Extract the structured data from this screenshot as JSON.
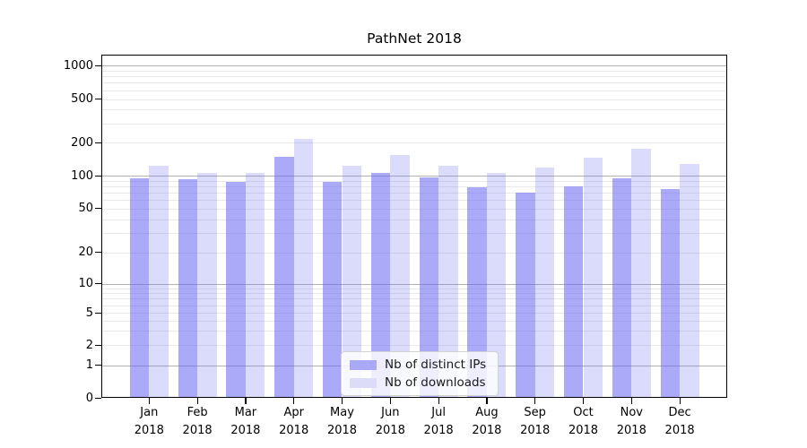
{
  "chart_data": {
    "type": "bar",
    "title": "PathNet 2018",
    "x": {
      "categories": [
        "Jan",
        "Feb",
        "Mar",
        "Apr",
        "May",
        "Jun",
        "Jul",
        "Aug",
        "Sep",
        "Oct",
        "Nov",
        "Dec"
      ],
      "year": "2018"
    },
    "y": {
      "scale": "symlog",
      "tick_values": [
        0,
        1,
        2,
        5,
        10,
        20,
        50,
        100,
        200,
        500,
        1000
      ],
      "tick_labels": [
        "0",
        "1",
        "2",
        "5",
        "10",
        "20",
        "50",
        "100",
        "200",
        "500",
        "1000"
      ],
      "ylim": [
        0,
        1250
      ],
      "grid": "on",
      "major_grid_values": [
        1,
        10,
        100,
        1000
      ],
      "minor_grid_subs": [
        2,
        3,
        4,
        5,
        6,
        7,
        8,
        9
      ]
    },
    "series": [
      {
        "name": "Nb of distinct IPs",
        "values": [
          94,
          92,
          88,
          150,
          88,
          106,
          97,
          79,
          70,
          80,
          95,
          76
        ],
        "fill": "rgba(100,100,243,0.55)",
        "legend_swatch": "#a9a9f6"
      },
      {
        "name": "Nb of downloads",
        "values": [
          124,
          106,
          106,
          215,
          123,
          155,
          124,
          106,
          118,
          145,
          178,
          127
        ],
        "fill": "rgba(100,100,243,0.235)",
        "legend_swatch": "#dcdcf9"
      }
    ],
    "legend": {
      "position": "lower center",
      "entries": [
        "Nb of distinct IPs",
        "Nb of downloads"
      ]
    }
  },
  "colors": {
    "background": "#ffffff",
    "spine": "#000000",
    "major_grid": "#b2b2b2",
    "minor_grid": "#e9e9e9",
    "text": "#000000"
  }
}
